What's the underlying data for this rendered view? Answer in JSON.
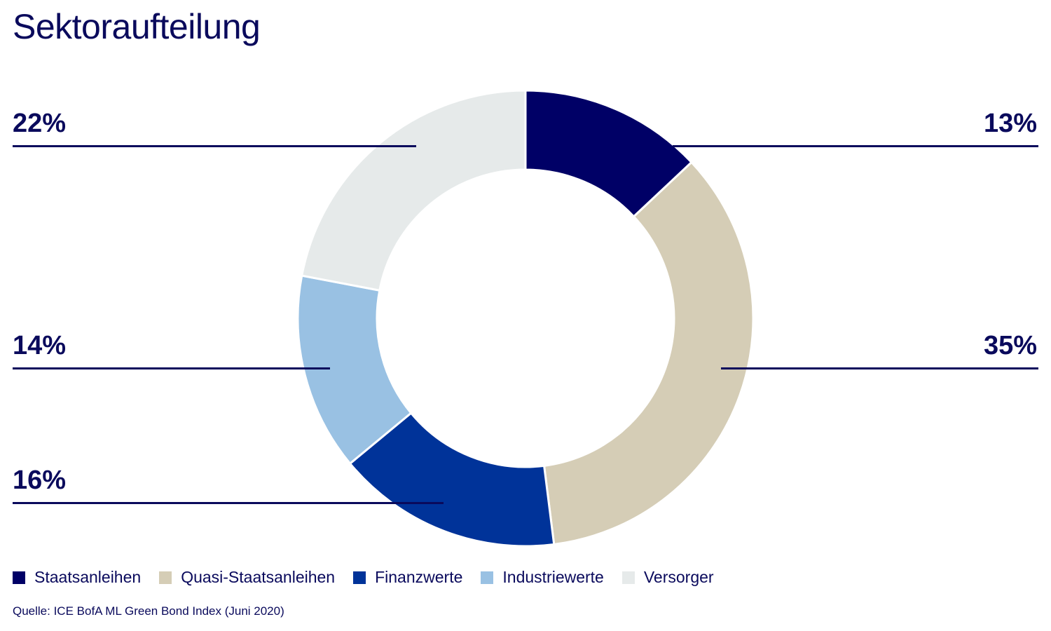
{
  "title": "Sektoraufteilung",
  "source": "Quelle: ICE BofA ML Green Bond Index (Juni 2020)",
  "labels": {
    "staatsanleihen": "13%",
    "quasi": "35%",
    "finanzwerte": "16%",
    "industriewerte": "14%",
    "versorger": "22%"
  },
  "legend": [
    {
      "label": "Staatsanleihen",
      "color": "#000066"
    },
    {
      "label": "Quasi-Staatsanleihen",
      "color": "#d5cdb6"
    },
    {
      "label": "Finanzwerte",
      "color": "#003399"
    },
    {
      "label": "Industriewerte",
      "color": "#99c1e3"
    },
    {
      "label": "Versorger",
      "color": "#e6eaea"
    }
  ],
  "chart_data": {
    "type": "pie",
    "variant": "donut",
    "title": "Sektoraufteilung",
    "categories": [
      "Staatsanleihen",
      "Quasi-Staatsanleihen",
      "Finanzwerte",
      "Industriewerte",
      "Versorger"
    ],
    "values": [
      13,
      35,
      16,
      14,
      22
    ],
    "unit": "%",
    "colors": [
      "#000066",
      "#d5cdb6",
      "#003399",
      "#99c1e3",
      "#e6eaea"
    ],
    "start_angle": "12 o'clock, clockwise",
    "legend_position": "bottom",
    "source": "Quelle: ICE BofA ML Green Bond Index (Juni 2020)"
  }
}
